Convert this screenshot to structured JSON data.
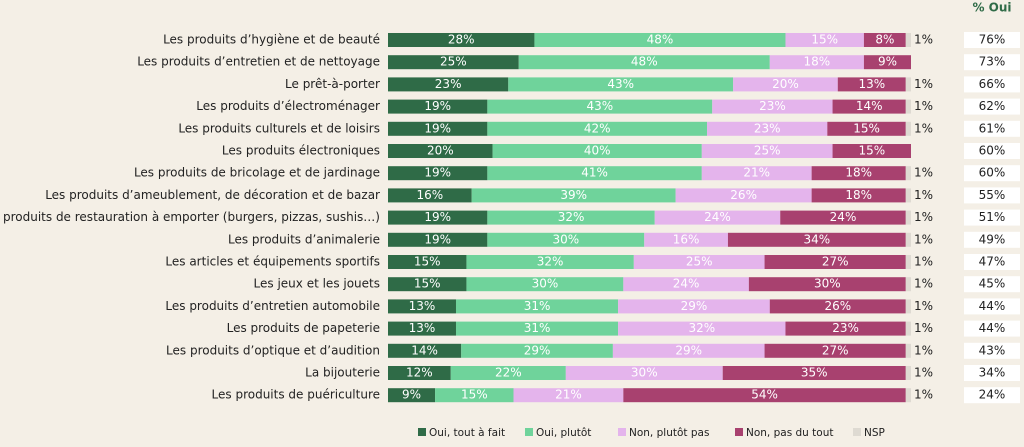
{
  "chart_data": {
    "type": "stacked-bar",
    "categories": [
      "Les produits d’hygiène et de beauté",
      "Les produits d’entretien et de nettoyage",
      "Le prêt-à-porter",
      "Les produits d’électroménager",
      "Les produits culturels et de loisirs",
      "Les produits électroniques",
      "Les produits de bricolage et de jardinage",
      "Les produits d’ameublement, de décoration et de bazar",
      "Les produits de restauration à emporter (burgers, pizzas, sushis…)",
      "Les produits d’animalerie",
      "Les articles et équipements sportifs",
      "Les jeux et les jouets",
      "Les produits d’entretien automobile",
      "Les produits de papeterie",
      "Les produits d’optique et d’audition",
      "La bijouterie",
      "Les produits de puériculture"
    ],
    "series": [
      {
        "name": "Oui, tout à fait",
        "color": "#2f6b47",
        "values": [
          28,
          25,
          23,
          19,
          19,
          20,
          19,
          16,
          19,
          19,
          15,
          15,
          13,
          13,
          14,
          12,
          9
        ],
        "value_labels": [
          "28%",
          "25%",
          "23%",
          "19%",
          "19%",
          "20%",
          "19%",
          "16%",
          "19%",
          "19%",
          "15%",
          "15%",
          "13%",
          "13%",
          "14%",
          "12%",
          "9%"
        ]
      },
      {
        "name": "Oui, plutôt",
        "color": "#6fd39b",
        "values": [
          48,
          48,
          43,
          43,
          42,
          40,
          41,
          39,
          32,
          30,
          32,
          30,
          31,
          31,
          29,
          22,
          15
        ],
        "value_labels": [
          "48%",
          "48%",
          "43%",
          "43%",
          "42%",
          "40%",
          "41%",
          "39%",
          "32%",
          "30%",
          "32%",
          "30%",
          "31%",
          "31%",
          "29%",
          "22%",
          "15%"
        ]
      },
      {
        "name": "Non, plutôt pas",
        "color": "#e4b4ec",
        "values": [
          15,
          18,
          20,
          23,
          23,
          25,
          21,
          26,
          24,
          16,
          25,
          24,
          29,
          32,
          29,
          30,
          21
        ],
        "value_labels": [
          "15%",
          "18%",
          "20%",
          "23%",
          "23%",
          "25%",
          "21%",
          "26%",
          "24%",
          "16%",
          "25%",
          "24%",
          "29%",
          "32%",
          "29%",
          "30%",
          "21%"
        ]
      },
      {
        "name": "Non, pas du tout",
        "color": "#a8416f",
        "values": [
          8,
          9,
          13,
          14,
          15,
          15,
          18,
          18,
          24,
          34,
          27,
          30,
          26,
          23,
          27,
          35,
          54
        ],
        "value_labels": [
          "8%",
          "9%",
          "13%",
          "14%",
          "15%",
          "15%",
          "18%",
          "18%",
          "24%",
          "34%",
          "27%",
          "30%",
          "26%",
          "23%",
          "27%",
          "35%",
          "54%"
        ]
      },
      {
        "name": "NSP",
        "color": "#dedad2",
        "values": [
          1,
          null,
          1,
          1,
          1,
          null,
          1,
          1,
          1,
          1,
          1,
          1,
          1,
          1,
          1,
          1,
          1
        ],
        "value_labels": [
          "1%",
          null,
          "1%",
          "1%",
          "1%",
          null,
          "1%",
          "1%",
          "1%",
          "1%",
          "1%",
          "1%",
          "1%",
          "1%",
          "1%",
          "1%",
          "1%"
        ]
      }
    ],
    "oui_header": "% Oui",
    "oui_values": [
      76,
      73,
      66,
      62,
      61,
      60,
      60,
      55,
      51,
      49,
      47,
      45,
      44,
      44,
      43,
      34,
      24
    ],
    "oui_labels": [
      "76%",
      "73%",
      "66%",
      "62%",
      "61%",
      "60%",
      "60%",
      "55%",
      "51%",
      "49%",
      "47%",
      "45%",
      "44%",
      "44%",
      "43%",
      "34%",
      "24%"
    ]
  }
}
